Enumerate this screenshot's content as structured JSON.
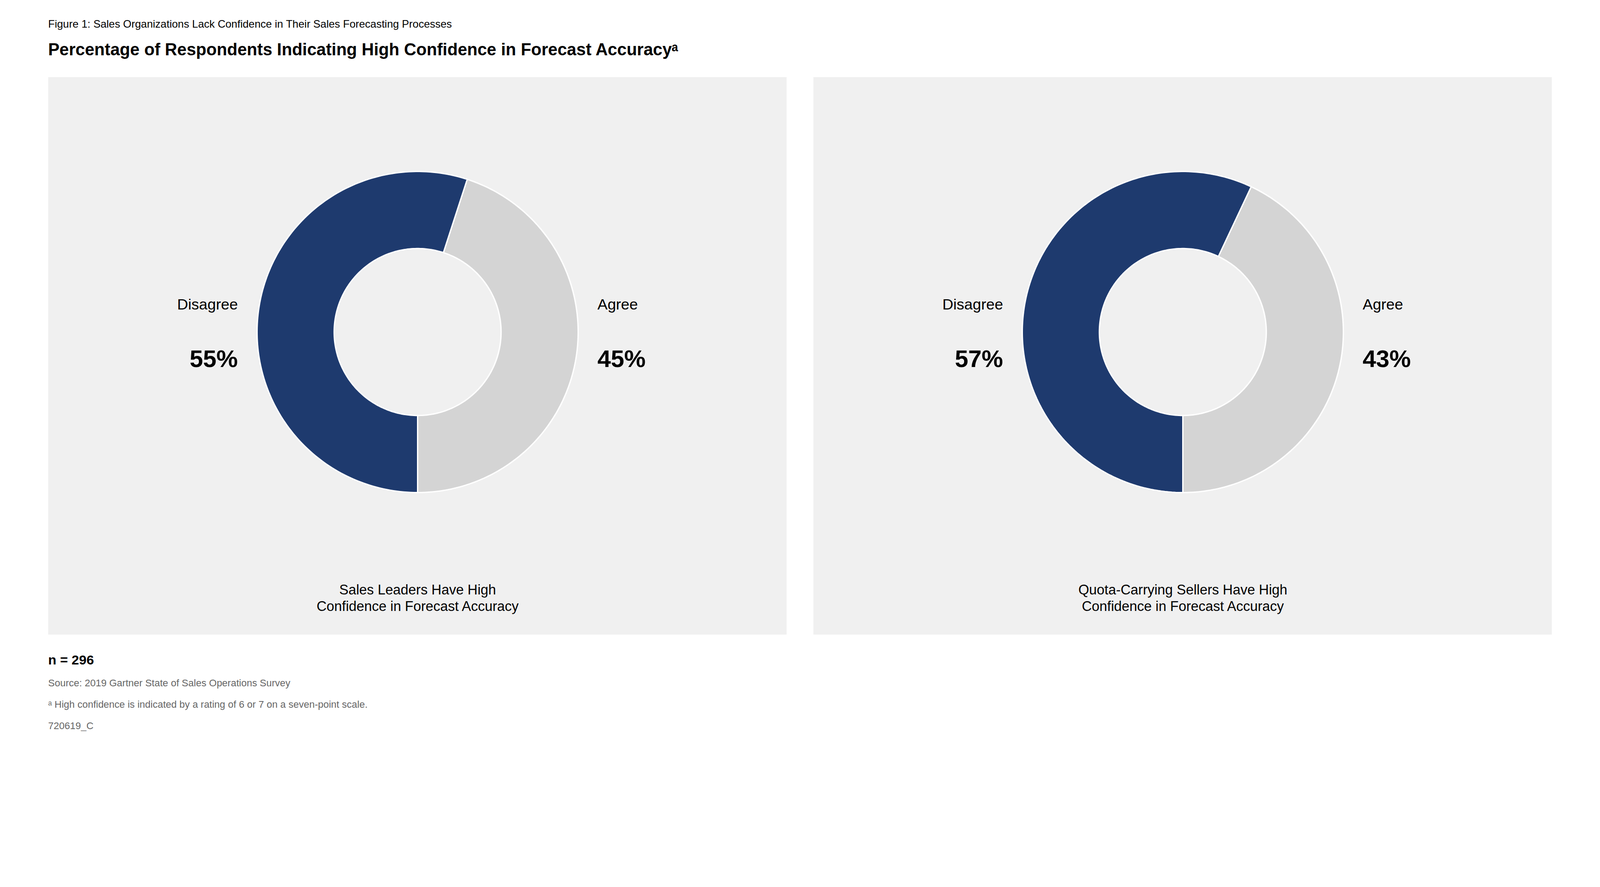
{
  "title": "Percentage of Respondents Indicating High Confidence in Forecast Accuracyᵃ",
  "subtitle": "Figure 1: Sales Organizations Lack Confidence in Their Sales Forecasting Processes",
  "annotations": [
    "n = 296",
    "Source: 2019 Gartner State of Sales Operations Survey",
    "ᵃ High confidence is indicated by a rating of 6 or 7 on a seven-point scale.",
    "720619_C"
  ],
  "chart_data": [
    {
      "type": "pie",
      "title": "Sales Leaders Have High\nConfidence in Forecast Accuracy",
      "categories": [
        "Agree",
        "Disagree"
      ],
      "values": [
        45,
        55
      ],
      "value_labels": [
        "45%",
        "55%"
      ],
      "colors": [
        "#d4d4d4",
        "#1e3a6e"
      ],
      "data_labels": true
    },
    {
      "type": "pie",
      "title": "Quota-Carrying Sellers Have High\nConfidence in Forecast Accuracy",
      "categories": [
        "Agree",
        "Disagree"
      ],
      "values": [
        43,
        57
      ],
      "value_labels": [
        "43%",
        "57%"
      ],
      "colors": [
        "#d4d4d4",
        "#1e3a6e"
      ],
      "data_labels": true
    }
  ]
}
